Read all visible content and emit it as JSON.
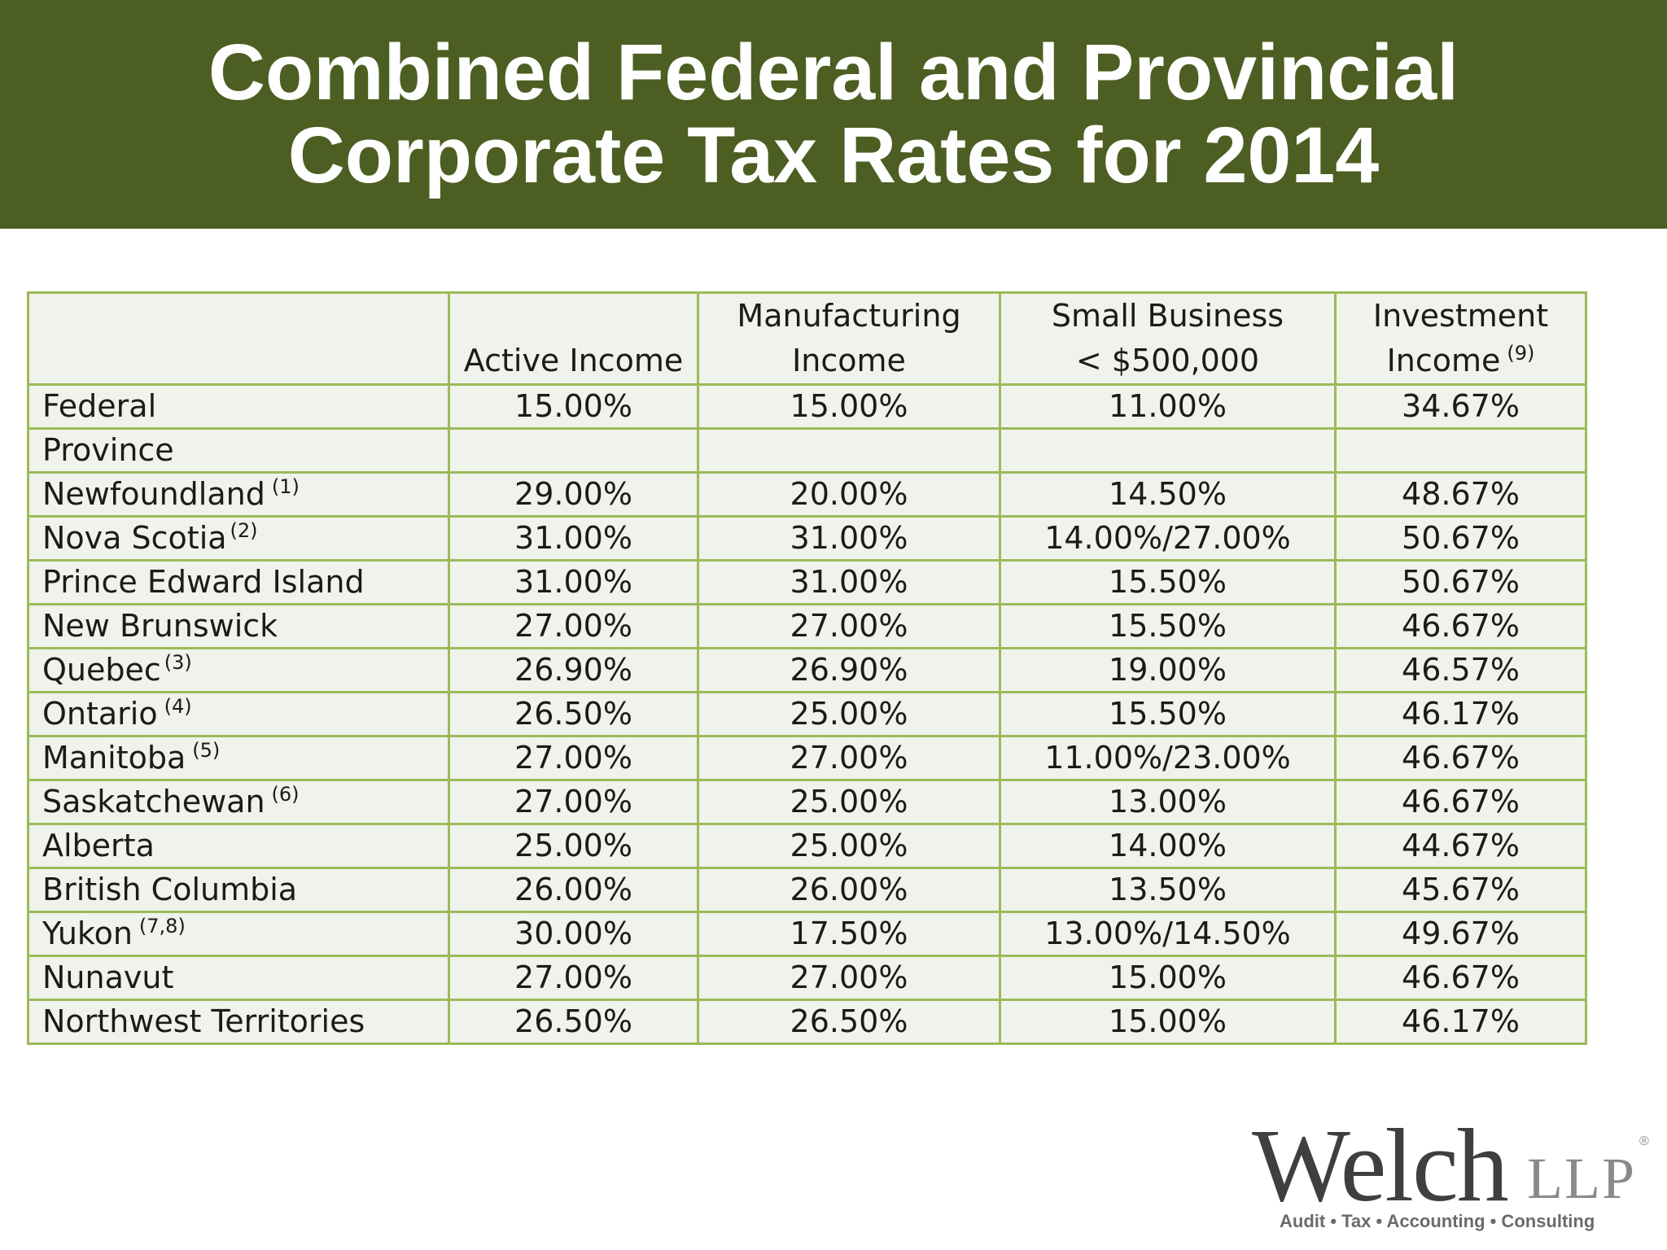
{
  "title": {
    "line1": "Combined Federal and Provincial",
    "line2": "Corporate Tax Rates for 2014"
  },
  "table": {
    "headers": [
      {
        "line1": "",
        "line2": ""
      },
      {
        "line1": "",
        "line2": "Active Income"
      },
      {
        "line1": "Manufacturing",
        "line2": "Income"
      },
      {
        "line1": "Small Business",
        "line2": "< $500,000"
      },
      {
        "line1": "Investment",
        "line2": "Income",
        "note": "(9)"
      }
    ],
    "rows": [
      {
        "label": "Federal",
        "note": "",
        "active": "15.00%",
        "manufacturing": "15.00%",
        "small_business": "11.00%",
        "investment": "34.67%"
      },
      {
        "label": "Province",
        "note": "",
        "active": "",
        "manufacturing": "",
        "small_business": "",
        "investment": ""
      },
      {
        "label": "Newfoundland",
        "note": "(1)",
        "active": "29.00%",
        "manufacturing": "20.00%",
        "small_business": "14.50%",
        "investment": "48.67%"
      },
      {
        "label": "Nova Scotia",
        "note": "(2)",
        "active": "31.00%",
        "manufacturing": "31.00%",
        "small_business": "14.00%/27.00%",
        "investment": "50.67%"
      },
      {
        "label": "Prince Edward Island",
        "note": "",
        "active": "31.00%",
        "manufacturing": "31.00%",
        "small_business": "15.50%",
        "investment": "50.67%"
      },
      {
        "label": "New Brunswick",
        "note": "",
        "active": "27.00%",
        "manufacturing": "27.00%",
        "small_business": "15.50%",
        "investment": "46.67%"
      },
      {
        "label": "Quebec",
        "note": "(3)",
        "active": "26.90%",
        "manufacturing": "26.90%",
        "small_business": "19.00%",
        "investment": "46.57%"
      },
      {
        "label": "Ontario",
        "note": "(4)",
        "active": "26.50%",
        "manufacturing": "25.00%",
        "small_business": "15.50%",
        "investment": "46.17%"
      },
      {
        "label": "Manitoba",
        "note": "(5)",
        "active": "27.00%",
        "manufacturing": "27.00%",
        "small_business": "11.00%/23.00%",
        "investment": "46.67%"
      },
      {
        "label": "Saskatchewan",
        "note": "(6)",
        "active": "27.00%",
        "manufacturing": "25.00%",
        "small_business": "13.00%",
        "investment": "46.67%"
      },
      {
        "label": "Alberta",
        "note": "",
        "active": "25.00%",
        "manufacturing": "25.00%",
        "small_business": "14.00%",
        "investment": "44.67%"
      },
      {
        "label": "British Columbia",
        "note": "",
        "active": "26.00%",
        "manufacturing": "26.00%",
        "small_business": "13.50%",
        "investment": "45.67%"
      },
      {
        "label": "Yukon",
        "note": "(7,8)",
        "active": "30.00%",
        "manufacturing": "17.50%",
        "small_business": "13.00%/14.50%",
        "investment": "49.67%"
      },
      {
        "label": "Nunavut",
        "note": "",
        "active": "27.00%",
        "manufacturing": "27.00%",
        "small_business": "15.00%",
        "investment": "46.67%"
      },
      {
        "label": "Northwest Territories",
        "note": "",
        "active": "26.50%",
        "manufacturing": "26.50%",
        "small_business": "15.00%",
        "investment": "46.17%"
      }
    ]
  },
  "logo": {
    "name": "Welch",
    "suffix": "LLP",
    "registered": "®",
    "tagline": "Audit • Tax • Accounting • Consulting"
  },
  "colors": {
    "banner": "#4d5e22",
    "table_border": "#9bbb59",
    "table_background": "#f0f2ec"
  }
}
